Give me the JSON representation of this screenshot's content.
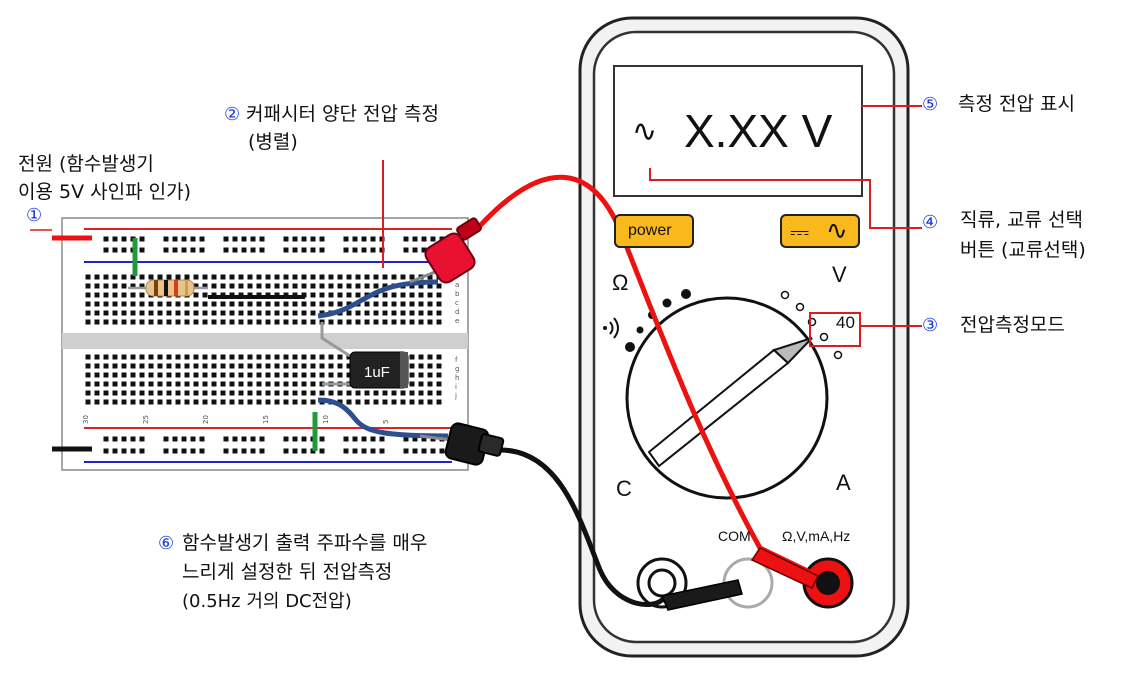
{
  "labels": {
    "power_source": {
      "line1": "전원 (함수발생기",
      "line2": "이용 5V 사인파 인가)",
      "num": "①"
    },
    "capacitor_measure": {
      "num": "②",
      "line1": "커패시터 양단 전압 측정",
      "line2": "(병렬)"
    },
    "mode": {
      "num": "③",
      "text": "전압측정모드"
    },
    "acdc": {
      "num": "④",
      "line1": "직류, 교류 선택",
      "line2": "버튼 (교류선택)"
    },
    "display": {
      "num": "⑤",
      "text": "측정 전압 표시"
    },
    "note": {
      "num": "⑥",
      "line1": "함수발생기 출력 주파수를 매우",
      "line2": "느리게 설정한 뒤 전압측정",
      "line3": "(0.5Hz 거의 DC전압)"
    }
  },
  "breadboard": {
    "column_numbers": [
      "30",
      "25",
      "20",
      "15",
      "10",
      "5"
    ],
    "row_letters_top": [
      "a",
      "b",
      "c",
      "d",
      "e"
    ],
    "row_letters_bottom": [
      "f",
      "g",
      "h",
      "i",
      "j"
    ],
    "capacitor_label": "1uF"
  },
  "multimeter": {
    "display_value": "X.XX V",
    "ac_symbol": "∿",
    "power_button": "power",
    "acdc_button_dc": "⎓",
    "acdc_button_ac": "∿",
    "dial_labels": {
      "ohm": "Ω",
      "volt": "V",
      "cap": "C",
      "amp": "A",
      "range": "40"
    },
    "jacks": {
      "com": "COM",
      "vohm": "Ω,V,mA,Hz"
    }
  },
  "colors": {
    "red_lead": "#ee1111",
    "black_lead": "#111111",
    "callout_red": "#d81e1e",
    "button_yellow": "#f9b81c",
    "blue_wire": "#2e4f8f",
    "jumper_green": "#1f9b3a"
  }
}
